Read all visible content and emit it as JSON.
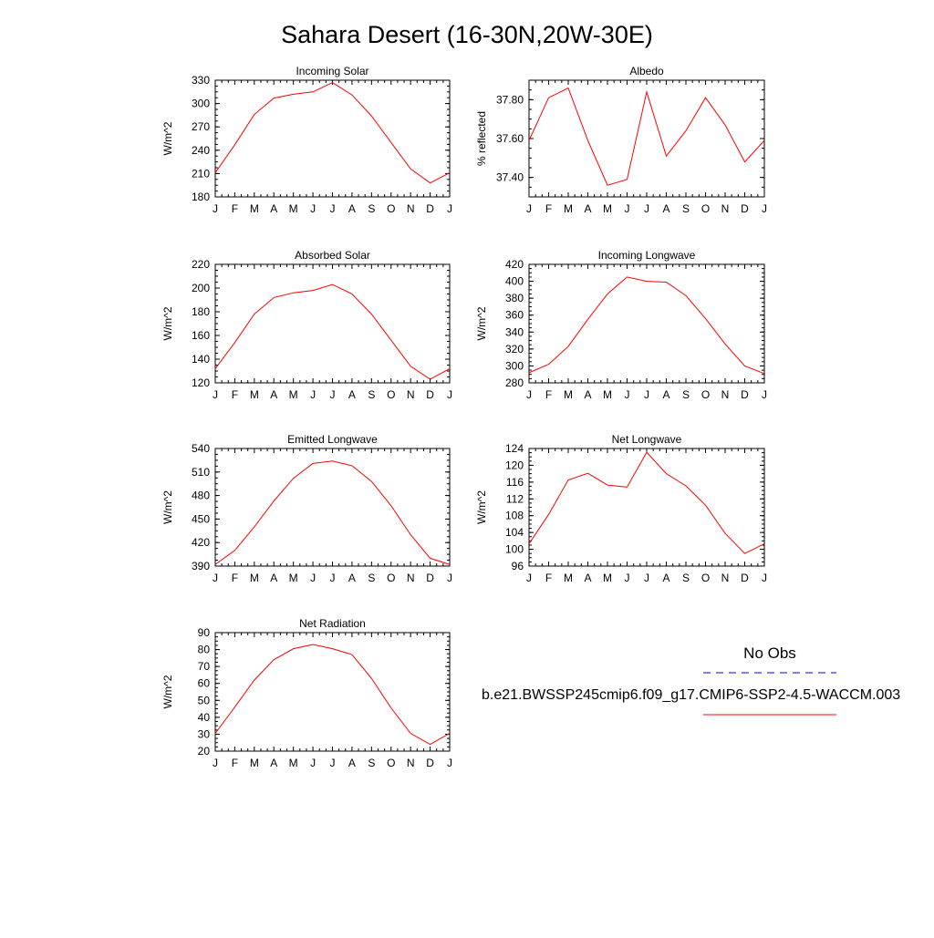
{
  "figure": {
    "title": "Sahara Desert (16-30N,20W-30E)"
  },
  "legend": {
    "obs_label": "No Obs",
    "obs_color": "#0000ff",
    "model_label": "b.e21.BWSSP245cmip6.f09_g17.CMIP6-SSP2-4.5-WACCM.003",
    "model_color": "#ff0000"
  },
  "chart_data": [
    {
      "type": "line",
      "title": "Incoming Solar",
      "ylabel": "W/m^2",
      "x": [
        "J",
        "F",
        "M",
        "A",
        "M",
        "J",
        "J",
        "A",
        "S",
        "O",
        "N",
        "D",
        "J"
      ],
      "ylim": [
        180,
        330
      ],
      "yticks": [
        180,
        210,
        240,
        270,
        300,
        330
      ],
      "ytick_labels": [
        "180",
        "210",
        "240",
        "270",
        "300",
        "330"
      ],
      "series": [
        {
          "color": "#ff0000",
          "values": [
            211,
            247,
            286,
            307,
            312,
            315,
            327,
            311,
            284,
            250,
            216,
            198,
            211
          ]
        }
      ]
    },
    {
      "type": "line",
      "title": "Albedo",
      "ylabel": "% reflected",
      "x": [
        "J",
        "F",
        "M",
        "A",
        "M",
        "J",
        "J",
        "A",
        "S",
        "O",
        "N",
        "D",
        "J"
      ],
      "ylim": [
        37.3,
        37.9
      ],
      "yticks": [
        37.4,
        37.6,
        37.8
      ],
      "ytick_labels": [
        "37.40",
        "37.60",
        "37.80"
      ],
      "series": [
        {
          "color": "#ff0000",
          "values": [
            37.59,
            37.81,
            37.86,
            37.59,
            37.36,
            37.39,
            37.84,
            37.51,
            37.64,
            37.81,
            37.67,
            37.48,
            37.59
          ]
        }
      ]
    },
    {
      "type": "line",
      "title": "Absorbed Solar",
      "ylabel": "W/m^2",
      "x": [
        "J",
        "F",
        "M",
        "A",
        "M",
        "J",
        "J",
        "A",
        "S",
        "O",
        "N",
        "D",
        "J"
      ],
      "ylim": [
        120,
        220
      ],
      "yticks": [
        120,
        140,
        160,
        180,
        200,
        220
      ],
      "ytick_labels": [
        "120",
        "140",
        "160",
        "180",
        "200",
        "220"
      ],
      "series": [
        {
          "color": "#ff0000",
          "values": [
            132,
            154,
            178,
            192,
            196,
            198,
            203,
            195,
            178,
            156,
            134,
            123,
            132
          ]
        }
      ]
    },
    {
      "type": "line",
      "title": "Incoming Longwave",
      "ylabel": "W/m^2",
      "x": [
        "J",
        "F",
        "M",
        "A",
        "M",
        "J",
        "J",
        "A",
        "S",
        "O",
        "N",
        "D",
        "J"
      ],
      "ylim": [
        280,
        420
      ],
      "yticks": [
        280,
        300,
        320,
        340,
        360,
        380,
        400,
        420
      ],
      "ytick_labels": [
        "280",
        "300",
        "320",
        "340",
        "360",
        "380",
        "400",
        "420"
      ],
      "series": [
        {
          "color": "#ff0000",
          "values": [
            292,
            302,
            323,
            355,
            385,
            405,
            400,
            399,
            383,
            356,
            326,
            300,
            291
          ]
        }
      ]
    },
    {
      "type": "line",
      "title": "Emitted Longwave",
      "ylabel": "W/m^2",
      "x": [
        "J",
        "F",
        "M",
        "A",
        "M",
        "J",
        "J",
        "A",
        "S",
        "O",
        "N",
        "D",
        "J"
      ],
      "ylim": [
        390,
        540
      ],
      "yticks": [
        390,
        420,
        450,
        480,
        510,
        540
      ],
      "ytick_labels": [
        "390",
        "420",
        "450",
        "480",
        "510",
        "540"
      ],
      "series": [
        {
          "color": "#ff0000",
          "values": [
            392,
            410,
            440,
            473,
            502,
            521,
            524,
            518,
            498,
            467,
            430,
            400,
            392
          ]
        }
      ]
    },
    {
      "type": "line",
      "title": "Net Longwave",
      "ylabel": "W/m^2",
      "x": [
        "J",
        "F",
        "M",
        "A",
        "M",
        "J",
        "J",
        "A",
        "S",
        "O",
        "N",
        "D",
        "J"
      ],
      "ylim": [
        96,
        124
      ],
      "yticks": [
        96,
        100,
        104,
        108,
        112,
        116,
        120,
        124
      ],
      "ytick_labels": [
        "96",
        "100",
        "104",
        "108",
        "112",
        "116",
        "120",
        "124"
      ],
      "series": [
        {
          "color": "#ff0000",
          "values": [
            101.3,
            108.3,
            116.5,
            118.1,
            115.3,
            114.8,
            123.1,
            118.0,
            115.1,
            110.5,
            103.8,
            99.0,
            101.3
          ]
        }
      ]
    },
    {
      "type": "line",
      "title": "Net Radiation",
      "ylabel": "W/m^2",
      "x": [
        "J",
        "F",
        "M",
        "A",
        "M",
        "J",
        "J",
        "A",
        "S",
        "O",
        "N",
        "D",
        "J"
      ],
      "ylim": [
        20,
        90
      ],
      "yticks": [
        20,
        30,
        40,
        50,
        60,
        70,
        80,
        90
      ],
      "ytick_labels": [
        "20",
        "30",
        "40",
        "50",
        "60",
        "70",
        "80",
        "90"
      ],
      "series": [
        {
          "color": "#ff0000",
          "values": [
            30.5,
            46,
            62,
            74,
            80.5,
            83,
            80.5,
            77,
            63,
            45.5,
            30.5,
            24,
            30.5
          ]
        }
      ]
    }
  ]
}
